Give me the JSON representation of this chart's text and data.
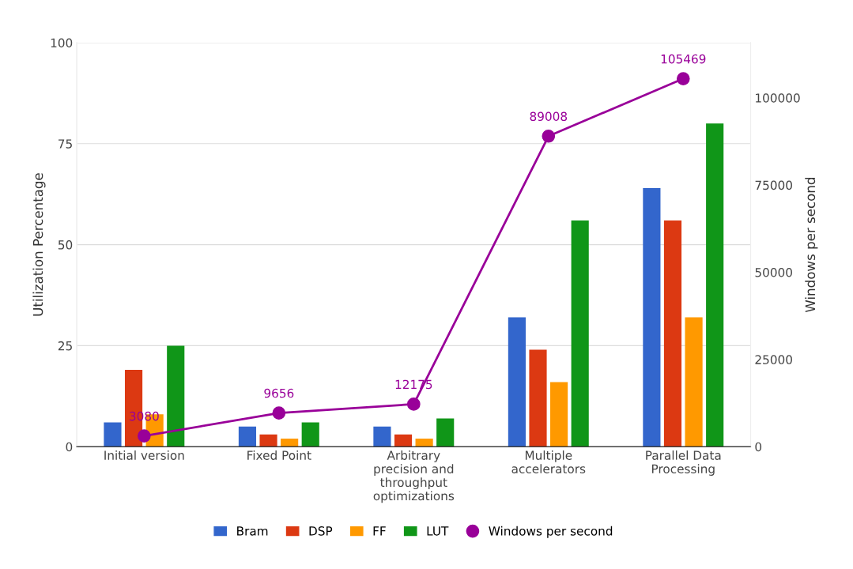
{
  "chart_data": {
    "type": "bar",
    "ylabel": "Utilization Percentage",
    "y2label": "Windows per second",
    "categories": [
      "Initial version",
      "Fixed Point",
      "Arbitrary\nprecision and\nthroughput\noptimizations",
      "Multiple\naccelerators",
      "Parallel Data\nProcessing"
    ],
    "series": [
      {
        "name": "Bram",
        "color": "#3366cc",
        "values": [
          6,
          5,
          5,
          32,
          64
        ]
      },
      {
        "name": "DSP",
        "color": "#dc3912",
        "values": [
          19,
          3,
          3,
          24,
          56
        ]
      },
      {
        "name": "FF",
        "color": "#ff9900",
        "values": [
          8,
          2,
          2,
          16,
          32
        ]
      },
      {
        "name": "LUT",
        "color": "#109618",
        "values": [
          25,
          6,
          7,
          56,
          80
        ]
      },
      {
        "name": "Windows per second",
        "type": "line",
        "axis": "y2",
        "color": "#990099",
        "marker": "circle",
        "values": [
          3080,
          9656,
          12175,
          89008,
          105469
        ],
        "value_labels": [
          "3080",
          "9656",
          "12175",
          "89008",
          "105469"
        ]
      }
    ],
    "ylim": [
      0,
      100
    ],
    "yticks": [
      0,
      25,
      50,
      75,
      100
    ],
    "y2lim": [
      0,
      115800
    ],
    "y2ticks": [
      0,
      25000,
      50000,
      75000,
      100000
    ],
    "grid": "y",
    "legend": "bottom"
  }
}
